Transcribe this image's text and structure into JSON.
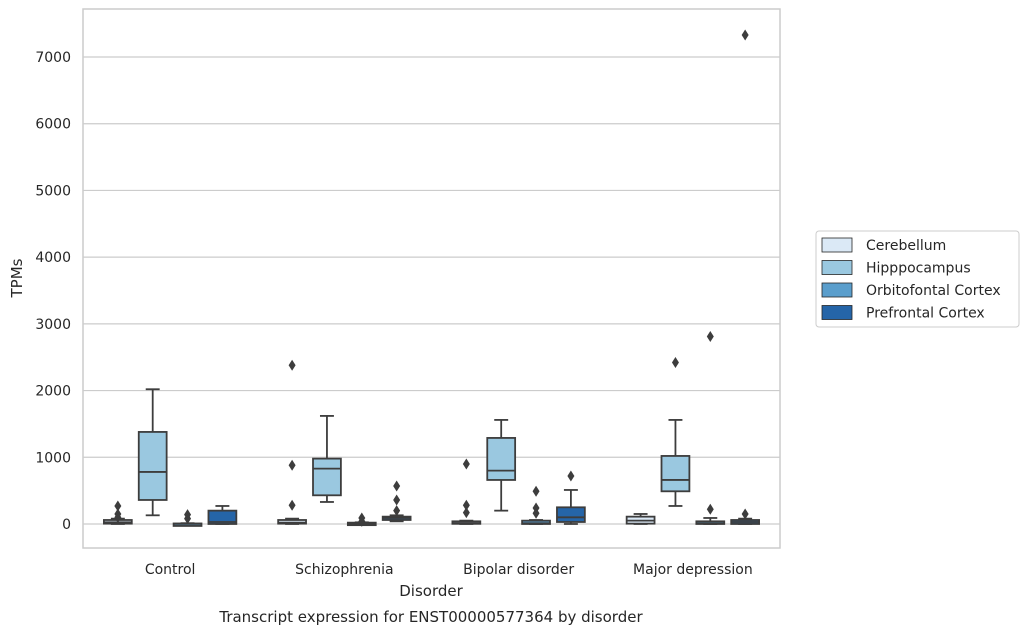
{
  "chart_data": {
    "type": "box",
    "title": "Transcript expression for ENST00000577364 by disorder",
    "xlabel": "Disorder",
    "ylabel": "TPMs",
    "categories": [
      "Control",
      "Schizophrenia",
      "Bipolar disorder",
      "Major depression"
    ],
    "ylim": [
      -360,
      7720
    ],
    "yticks": [
      0,
      1000,
      2000,
      3000,
      4000,
      5000,
      6000,
      7000
    ],
    "grid": "horizontal",
    "legend_position": "right",
    "series": [
      {
        "name": "Cerebellum",
        "color": "#dbe9f6",
        "boxes": [
          {
            "whislo": 0,
            "q1": 5,
            "med": 25,
            "q3": 60,
            "whishi": 80,
            "fliers": [
              270,
              150,
              100
            ]
          },
          {
            "whislo": 0,
            "q1": 5,
            "med": 20,
            "q3": 60,
            "whishi": 80,
            "fliers": [
              2380,
              880,
              280
            ]
          },
          {
            "whislo": 0,
            "q1": 3,
            "med": 15,
            "q3": 40,
            "whishi": 50,
            "fliers": [
              900,
              280,
              170
            ]
          },
          {
            "whislo": 0,
            "q1": 5,
            "med": 50,
            "q3": 110,
            "whishi": 150,
            "fliers": []
          }
        ]
      },
      {
        "name": "Hipppocampus",
        "color": "#9ac8e0",
        "boxes": [
          {
            "whislo": 130,
            "q1": 360,
            "med": 780,
            "q3": 1380,
            "whishi": 2020,
            "fliers": []
          },
          {
            "whislo": 330,
            "q1": 430,
            "med": 830,
            "q3": 980,
            "whishi": 1620,
            "fliers": []
          },
          {
            "whislo": 200,
            "q1": 660,
            "med": 800,
            "q3": 1290,
            "whishi": 1560,
            "fliers": []
          },
          {
            "whislo": 270,
            "q1": 490,
            "med": 660,
            "q3": 1020,
            "whishi": 1560,
            "fliers": [
              2420
            ]
          }
        ]
      },
      {
        "name": "Orbitofontal Cortex",
        "color": "#5a9ecc",
        "boxes": [
          {
            "whislo": 0,
            "q1": 0,
            "med": 2,
            "q3": 8,
            "whishi": 12,
            "fliers": [
              140,
              80
            ]
          },
          {
            "whislo": 0,
            "q1": 0,
            "med": 5,
            "q3": 20,
            "whishi": 25,
            "fliers": [
              90,
              40
            ]
          },
          {
            "whislo": 0,
            "q1": 0,
            "med": 10,
            "q3": 50,
            "whishi": 60,
            "fliers": [
              490,
              240,
              160
            ]
          },
          {
            "whislo": 0,
            "q1": 0,
            "med": 10,
            "q3": 40,
            "whishi": 90,
            "fliers": [
              2810,
              220
            ]
          }
        ]
      },
      {
        "name": "Prefrontal Cortex",
        "color": "#2565a8",
        "boxes": [
          {
            "whislo": 0,
            "q1": 0,
            "med": 30,
            "q3": 200,
            "whishi": 270,
            "fliers": []
          },
          {
            "whislo": 40,
            "q1": 60,
            "med": 90,
            "q3": 110,
            "whishi": 130,
            "fliers": [
              570,
              360,
              200
            ]
          },
          {
            "whislo": 0,
            "q1": 30,
            "med": 100,
            "q3": 250,
            "whishi": 510,
            "fliers": [
              720
            ]
          },
          {
            "whislo": 0,
            "q1": 0,
            "med": 30,
            "q3": 60,
            "whishi": 80,
            "fliers": [
              7330,
              150
            ]
          }
        ]
      }
    ]
  }
}
